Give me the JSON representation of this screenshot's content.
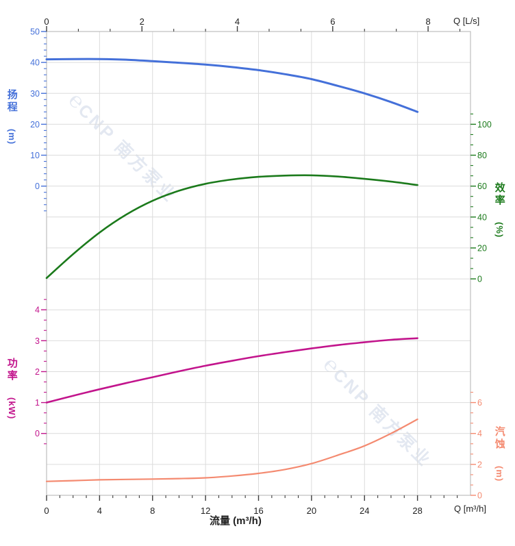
{
  "axes": {
    "top": {
      "label": "Q [L/s]",
      "ticks": [
        "0",
        "2",
        "4",
        "6",
        "8"
      ],
      "tick_values": [
        0,
        2,
        4,
        6,
        8
      ]
    },
    "bottom": {
      "corner_label": "Q [m³/h]",
      "title": "流量 (m³/h)",
      "ticks": [
        "0",
        "4",
        "8",
        "12",
        "16",
        "20",
        "24",
        "28"
      ],
      "tick_values": [
        0,
        4,
        8,
        12,
        16,
        20,
        24,
        28
      ]
    },
    "head": {
      "title": "扬程",
      "unit": "(m)",
      "color": "#4470d9",
      "ticks": [
        "50",
        "40",
        "30",
        "20",
        "10",
        "0"
      ],
      "tick_values": [
        50,
        40,
        30,
        20,
        10,
        0
      ]
    },
    "eff": {
      "title": "效率",
      "unit": "(%)",
      "color": "#1b7a1b",
      "ticks": [
        "100",
        "80",
        "60",
        "40",
        "20",
        "0"
      ],
      "tick_values": [
        100,
        80,
        60,
        40,
        20,
        0
      ]
    },
    "power": {
      "title": "功率",
      "unit": "(kW)",
      "color": "#c2148c",
      "ticks": [
        "4",
        "3",
        "2",
        "1",
        "0"
      ],
      "tick_values": [
        4,
        3,
        2,
        1,
        0
      ]
    },
    "npsh": {
      "title": "汽蚀",
      "unit": "(m)",
      "color": "#f48a70",
      "ticks": [
        "6",
        "4",
        "2",
        "0"
      ],
      "tick_values": [
        6,
        4,
        2,
        0
      ]
    }
  },
  "watermark": {
    "logo": "℮",
    "text": "CNP 南方泵业"
  },
  "colors": {
    "grid": "#dcdcdc",
    "border": "#bdbdbd",
    "tick_black": "#3c3c3c",
    "label_black": "#1f1f1f"
  },
  "chart_data": {
    "type": "line",
    "title": "",
    "xlabel": "流量 (m³/h)",
    "x_top_label": "Q [L/s]",
    "x_range_m3h": [
      0,
      32
    ],
    "x_top_range_ls": [
      0,
      8.89
    ],
    "grid": true,
    "axis_ranges": {
      "head_m": [
        0,
        50
      ],
      "eff_pct": [
        0,
        100
      ],
      "power_kW": [
        0,
        4
      ],
      "npsh_m": [
        0,
        6
      ]
    },
    "x_m3h": [
      0,
      2,
      4,
      6,
      8,
      10,
      12,
      14,
      16,
      18,
      20,
      22,
      24,
      26,
      28
    ],
    "series": [
      {
        "name": "扬程 (m)",
        "axis": "head",
        "color": "#4470d9",
        "width": 3,
        "values": [
          41.0,
          41.1,
          41.1,
          40.9,
          40.4,
          39.9,
          39.3,
          38.5,
          37.5,
          36.2,
          34.6,
          32.4,
          30.0,
          27.2,
          24.0
        ]
      },
      {
        "name": "效率 (%)",
        "axis": "eff",
        "color": "#1b7a1b",
        "width": 2.6,
        "values": [
          0.5,
          16.0,
          30.0,
          41.5,
          50.5,
          57.0,
          61.5,
          64.3,
          66.0,
          66.8,
          67.0,
          66.2,
          64.7,
          62.9,
          60.7
        ]
      },
      {
        "name": "功率 (kW)",
        "axis": "power",
        "color": "#c2148c",
        "width": 2.6,
        "values": [
          1.0,
          1.22,
          1.43,
          1.63,
          1.82,
          2.01,
          2.19,
          2.35,
          2.5,
          2.63,
          2.75,
          2.86,
          2.95,
          3.03,
          3.08
        ]
      },
      {
        "name": "汽蚀 (m)",
        "axis": "npsh",
        "color": "#f48a70",
        "width": 2.2,
        "values": [
          0.9,
          0.95,
          1.0,
          1.03,
          1.05,
          1.08,
          1.13,
          1.25,
          1.42,
          1.67,
          2.05,
          2.6,
          3.2,
          4.0,
          4.92
        ]
      }
    ]
  }
}
